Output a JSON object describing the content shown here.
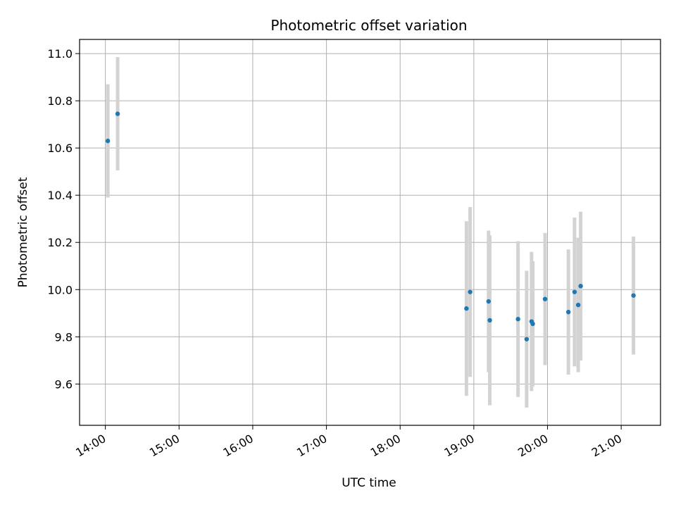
{
  "chart_data": {
    "type": "scatter",
    "title": "Photometric offset variation",
    "xlabel": "UTC time",
    "ylabel": "Photometric offset",
    "x_tick_labels": [
      "14:00",
      "15:00",
      "16:00",
      "17:00",
      "18:00",
      "19:00",
      "20:00",
      "21:00"
    ],
    "x_tick_values": [
      14,
      15,
      16,
      17,
      18,
      19,
      20,
      21
    ],
    "y_tick_labels": [
      "9.6",
      "9.8",
      "10.0",
      "10.2",
      "10.4",
      "10.6",
      "10.8",
      "11.0"
    ],
    "y_tick_values": [
      9.6,
      9.8,
      10.0,
      10.2,
      10.4,
      10.6,
      10.8,
      11.0
    ],
    "xlim": [
      "13:39",
      "21:32"
    ],
    "ylim": [
      9.425,
      11.06
    ],
    "grid": true,
    "point_color": "#1f77b4",
    "errorbar_color": "#d3d3d3",
    "points": [
      {
        "x": "14:02",
        "y": 10.63,
        "yerr": 0.24
      },
      {
        "x": "14:10",
        "y": 10.745,
        "yerr": 0.24
      },
      {
        "x": "18:54",
        "y": 9.92,
        "yerr": 0.37
      },
      {
        "x": "18:57",
        "y": 9.99,
        "yerr": 0.36
      },
      {
        "x": "19:12",
        "y": 9.95,
        "yerr": 0.3
      },
      {
        "x": "19:13",
        "y": 9.87,
        "yerr": 0.36
      },
      {
        "x": "19:36",
        "y": 9.875,
        "yerr": 0.33
      },
      {
        "x": "19:43",
        "y": 9.79,
        "yerr": 0.29
      },
      {
        "x": "19:47",
        "y": 9.865,
        "yerr": 0.295
      },
      {
        "x": "19:48",
        "y": 9.855,
        "yerr": 0.265
      },
      {
        "x": "19:58",
        "y": 9.96,
        "yerr": 0.28
      },
      {
        "x": "20:17",
        "y": 9.905,
        "yerr": 0.265
      },
      {
        "x": "20:22",
        "y": 9.99,
        "yerr": 0.315
      },
      {
        "x": "20:25",
        "y": 9.935,
        "yerr": 0.285
      },
      {
        "x": "20:27",
        "y": 10.015,
        "yerr": 0.315
      },
      {
        "x": "21:10",
        "y": 9.975,
        "yerr": 0.25
      }
    ]
  }
}
